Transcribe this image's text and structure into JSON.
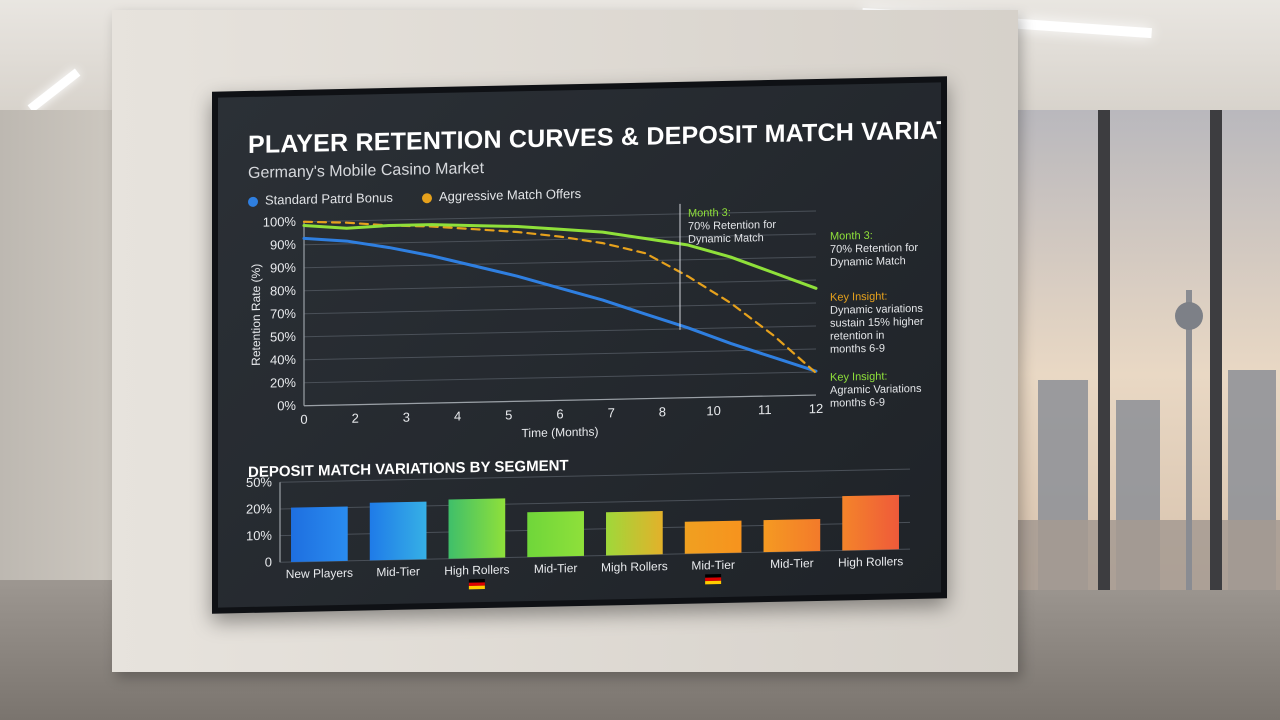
{
  "dashboard": {
    "title": "PLAYER RETENTION CURVES & DEPOSIT MATCH VARIATIONS",
    "subtitle": "Germany's Mobile Casino Market"
  },
  "legend": [
    {
      "label": "Standard Patrd Bonus",
      "color": "#2f7fe0"
    },
    {
      "label": "Aggressive Match Offers",
      "color": "#e6a11c"
    }
  ],
  "annotations": {
    "chart_callout": {
      "head": "Month 3:",
      "body": "70% Retention for\nDynamic Match"
    },
    "side_callout_1": {
      "head": "Month 3:",
      "body": "70% Retention for\nDynamic Match"
    },
    "side_callout_2": {
      "head": "Key Insight:",
      "body": "Dynamic variations\nsustain 15% higher\nretention in\nmonths 6-9"
    },
    "side_callout_3": {
      "head": "Key Insight:",
      "body": "Agramic Variations\nmonths 6-9"
    }
  },
  "colors": {
    "green": "#8fe03a",
    "orange": "#e6a11c",
    "blue": "#2f7fe0"
  },
  "chart_data": [
    {
      "type": "line",
      "xlabel": "Time (Months)",
      "ylabel": "Retention Rate (%)",
      "x_ticks": [
        "0",
        "2",
        "3",
        "4",
        "5",
        "6",
        "7",
        "8",
        "10",
        "11",
        "12"
      ],
      "y_ticks": [
        "100%",
        "90%",
        "90%",
        "80%",
        "70%",
        "50%",
        "40%",
        "20%",
        "0%"
      ],
      "series": [
        {
          "name": "Standard Patrd Bonus",
          "color": "#2f7fe0",
          "style": "solid",
          "values": [
            91,
            89,
            85,
            80,
            74,
            68,
            61,
            54,
            46,
            38,
            29,
            21,
            13
          ]
        },
        {
          "name": "Aggressive Match Offers",
          "color": "#e6a11c",
          "style": "dashed",
          "values": [
            100,
            99,
            97,
            96,
            94,
            92,
            89,
            85,
            79,
            66,
            51,
            33,
            12
          ]
        },
        {
          "name": "",
          "color": "#8fe03a",
          "style": "solid",
          "values": [
            98,
            96,
            97,
            97,
            96,
            95,
            93,
            91,
            87,
            83,
            76,
            67,
            58
          ]
        }
      ]
    },
    {
      "type": "bar",
      "title": "DEPOSIT MATCH VARIATIONS BY SEGMENT",
      "y_ticks": [
        "50%",
        "20%",
        "10%",
        "0"
      ],
      "categories": [
        "New Players",
        "Mid-Tier",
        "High Rollers",
        "Mid-Tier",
        "Migh Rollers",
        "Mid-Tier",
        "Mid-Tier",
        "High Rollers"
      ],
      "values": [
        34,
        36,
        37,
        28,
        27,
        20,
        20,
        34
      ],
      "flags": [
        false,
        false,
        true,
        false,
        false,
        true,
        false,
        false
      ]
    }
  ]
}
